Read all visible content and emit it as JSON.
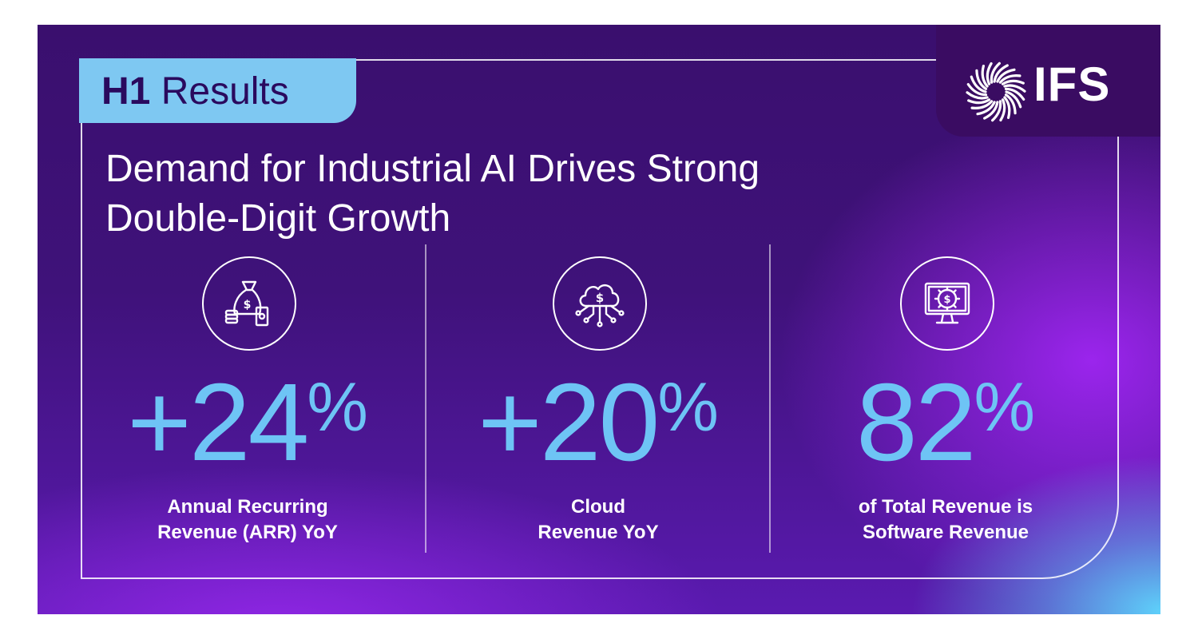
{
  "tag": {
    "bold": "H1",
    "rest": "Results"
  },
  "logo": {
    "text": "IFS",
    "icon": "ifs-burst-logo"
  },
  "headline": "Demand for Industrial AI Drives Strong Double-Digit Growth",
  "stats": [
    {
      "icon": "money-bag-icon",
      "value": "+24",
      "unit": "%",
      "label_line1": "Annual Recurring",
      "label_line2": "Revenue (ARR) YoY"
    },
    {
      "icon": "cloud-dollar-icon",
      "value": "+20",
      "unit": "%",
      "label_line1": "Cloud",
      "label_line2": "Revenue YoY"
    },
    {
      "icon": "monitor-gear-dollar-icon",
      "value": "82",
      "unit": "%",
      "label_line1": "of Total Revenue is",
      "label_line2": "Software Revenue"
    }
  ],
  "colors": {
    "accent": "#6ec4f5",
    "tag_bg": "#7ec8f2",
    "bg_dark": "#3b0f70",
    "text": "#ffffff"
  }
}
